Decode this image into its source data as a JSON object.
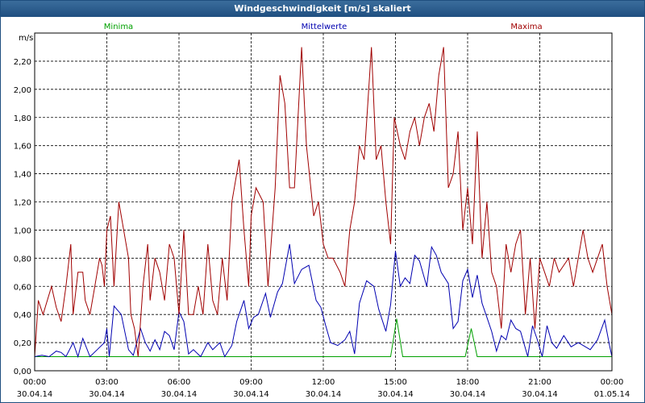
{
  "window": {
    "title": "Windgeschwindigkeit [m/s] skaliert"
  },
  "chart_data": {
    "type": "line",
    "title": "Windgeschwindigkeit [m/s] skaliert",
    "ylabel": "m/s",
    "ylim": [
      0,
      2.4
    ],
    "grid": true,
    "legend_placement": "top",
    "yticks": [
      "0,00",
      "0,20",
      "0,40",
      "0,60",
      "0,80",
      "1,00",
      "1,20",
      "1,40",
      "1,60",
      "1,80",
      "2,00",
      "2,20"
    ],
    "ytick_values": [
      0,
      0.2,
      0.4,
      0.6,
      0.8,
      1.0,
      1.2,
      1.4,
      1.6,
      1.8,
      2.0,
      2.2
    ],
    "xticks": [
      {
        "time": "00:00",
        "date": "30.04.14"
      },
      {
        "time": "03:00",
        "date": "30.04.14"
      },
      {
        "time": "06:00",
        "date": "30.04.14"
      },
      {
        "time": "09:00",
        "date": "30.04.14"
      },
      {
        "time": "12:00",
        "date": "30.04.14"
      },
      {
        "time": "15:00",
        "date": "30.04.14"
      },
      {
        "time": "18:00",
        "date": "30.04.14"
      },
      {
        "time": "21:00",
        "date": "30.04.14"
      },
      {
        "time": "00:00",
        "date": "01.05.14"
      }
    ],
    "xlim": [
      0,
      24
    ],
    "series": [
      {
        "name": "Minima",
        "color": "#00a000",
        "points": [
          [
            0,
            0.1
          ],
          [
            14.8,
            0.1
          ],
          [
            15.05,
            0.37
          ],
          [
            15.3,
            0.1
          ],
          [
            17.9,
            0.1
          ],
          [
            18.15,
            0.3
          ],
          [
            18.4,
            0.1
          ],
          [
            24,
            0.1
          ]
        ]
      },
      {
        "name": "Mittelwerte",
        "color": "#0000b0",
        "points": [
          [
            0,
            0.1
          ],
          [
            0.3,
            0.11
          ],
          [
            0.6,
            0.1
          ],
          [
            0.9,
            0.14
          ],
          [
            1.1,
            0.13
          ],
          [
            1.3,
            0.1
          ],
          [
            1.6,
            0.2
          ],
          [
            1.8,
            0.1
          ],
          [
            2.0,
            0.23
          ],
          [
            2.3,
            0.1
          ],
          [
            2.6,
            0.15
          ],
          [
            2.9,
            0.2
          ],
          [
            3.0,
            0.3
          ],
          [
            3.1,
            0.1
          ],
          [
            3.3,
            0.46
          ],
          [
            3.6,
            0.4
          ],
          [
            3.9,
            0.15
          ],
          [
            4.1,
            0.11
          ],
          [
            4.4,
            0.3
          ],
          [
            4.6,
            0.2
          ],
          [
            4.8,
            0.14
          ],
          [
            5.0,
            0.22
          ],
          [
            5.2,
            0.15
          ],
          [
            5.4,
            0.28
          ],
          [
            5.6,
            0.25
          ],
          [
            5.8,
            0.15
          ],
          [
            6.0,
            0.42
          ],
          [
            6.2,
            0.35
          ],
          [
            6.4,
            0.12
          ],
          [
            6.6,
            0.15
          ],
          [
            6.9,
            0.1
          ],
          [
            7.2,
            0.2
          ],
          [
            7.4,
            0.15
          ],
          [
            7.7,
            0.2
          ],
          [
            7.9,
            0.1
          ],
          [
            8.2,
            0.18
          ],
          [
            8.4,
            0.35
          ],
          [
            8.7,
            0.5
          ],
          [
            8.9,
            0.3
          ],
          [
            9.1,
            0.38
          ],
          [
            9.3,
            0.4
          ],
          [
            9.6,
            0.55
          ],
          [
            9.8,
            0.38
          ],
          [
            10.1,
            0.56
          ],
          [
            10.3,
            0.62
          ],
          [
            10.6,
            0.9
          ],
          [
            10.8,
            0.62
          ],
          [
            11.1,
            0.72
          ],
          [
            11.4,
            0.75
          ],
          [
            11.7,
            0.5
          ],
          [
            11.9,
            0.45
          ],
          [
            12.1,
            0.32
          ],
          [
            12.3,
            0.2
          ],
          [
            12.6,
            0.18
          ],
          [
            12.9,
            0.22
          ],
          [
            13.1,
            0.28
          ],
          [
            13.3,
            0.12
          ],
          [
            13.5,
            0.48
          ],
          [
            13.8,
            0.64
          ],
          [
            14.1,
            0.6
          ],
          [
            14.3,
            0.44
          ],
          [
            14.6,
            0.28
          ],
          [
            14.8,
            0.47
          ],
          [
            15.0,
            0.85
          ],
          [
            15.2,
            0.6
          ],
          [
            15.4,
            0.66
          ],
          [
            15.6,
            0.62
          ],
          [
            15.8,
            0.82
          ],
          [
            16.0,
            0.78
          ],
          [
            16.3,
            0.6
          ],
          [
            16.5,
            0.88
          ],
          [
            16.7,
            0.82
          ],
          [
            16.9,
            0.7
          ],
          [
            17.2,
            0.62
          ],
          [
            17.4,
            0.3
          ],
          [
            17.6,
            0.35
          ],
          [
            17.8,
            0.64
          ],
          [
            18.0,
            0.72
          ],
          [
            18.2,
            0.52
          ],
          [
            18.4,
            0.68
          ],
          [
            18.6,
            0.48
          ],
          [
            18.8,
            0.38
          ],
          [
            19.0,
            0.28
          ],
          [
            19.2,
            0.14
          ],
          [
            19.4,
            0.25
          ],
          [
            19.6,
            0.22
          ],
          [
            19.8,
            0.36
          ],
          [
            20.0,
            0.3
          ],
          [
            20.2,
            0.28
          ],
          [
            20.5,
            0.1
          ],
          [
            20.7,
            0.32
          ],
          [
            20.9,
            0.22
          ],
          [
            21.1,
            0.1
          ],
          [
            21.3,
            0.32
          ],
          [
            21.5,
            0.2
          ],
          [
            21.7,
            0.16
          ],
          [
            22.0,
            0.25
          ],
          [
            22.3,
            0.17
          ],
          [
            22.6,
            0.2
          ],
          [
            22.8,
            0.18
          ],
          [
            23.1,
            0.15
          ],
          [
            23.4,
            0.22
          ],
          [
            23.7,
            0.36
          ],
          [
            23.9,
            0.18
          ],
          [
            24,
            0.1
          ]
        ]
      },
      {
        "name": "Maxima",
        "color": "#a00000",
        "points": [
          [
            0,
            0.1
          ],
          [
            0.15,
            0.5
          ],
          [
            0.35,
            0.4
          ],
          [
            0.7,
            0.6
          ],
          [
            0.9,
            0.45
          ],
          [
            1.1,
            0.35
          ],
          [
            1.3,
            0.6
          ],
          [
            1.5,
            0.9
          ],
          [
            1.6,
            0.4
          ],
          [
            1.8,
            0.7
          ],
          [
            2.0,
            0.7
          ],
          [
            2.1,
            0.5
          ],
          [
            2.3,
            0.4
          ],
          [
            2.5,
            0.6
          ],
          [
            2.7,
            0.8
          ],
          [
            2.8,
            0.75
          ],
          [
            2.9,
            0.6
          ],
          [
            3.0,
            1.0
          ],
          [
            3.15,
            1.1
          ],
          [
            3.3,
            0.6
          ],
          [
            3.5,
            1.2
          ],
          [
            3.7,
            1.0
          ],
          [
            3.9,
            0.8
          ],
          [
            4.0,
            0.4
          ],
          [
            4.15,
            0.3
          ],
          [
            4.3,
            0.1
          ],
          [
            4.5,
            0.6
          ],
          [
            4.7,
            0.9
          ],
          [
            4.8,
            0.5
          ],
          [
            5.0,
            0.8
          ],
          [
            5.2,
            0.7
          ],
          [
            5.4,
            0.5
          ],
          [
            5.6,
            0.9
          ],
          [
            5.8,
            0.8
          ],
          [
            6.0,
            0.4
          ],
          [
            6.2,
            1.0
          ],
          [
            6.4,
            0.4
          ],
          [
            6.6,
            0.4
          ],
          [
            6.8,
            0.6
          ],
          [
            7.0,
            0.4
          ],
          [
            7.2,
            0.9
          ],
          [
            7.4,
            0.5
          ],
          [
            7.6,
            0.4
          ],
          [
            7.8,
            0.8
          ],
          [
            8.0,
            0.5
          ],
          [
            8.2,
            1.2
          ],
          [
            8.5,
            1.5
          ],
          [
            8.7,
            1.0
          ],
          [
            8.9,
            0.6
          ],
          [
            9.0,
            1.1
          ],
          [
            9.2,
            1.3
          ],
          [
            9.5,
            1.2
          ],
          [
            9.7,
            0.6
          ],
          [
            10.0,
            1.3
          ],
          [
            10.2,
            2.1
          ],
          [
            10.4,
            1.9
          ],
          [
            10.6,
            1.3
          ],
          [
            10.8,
            1.3
          ],
          [
            11.1,
            2.3
          ],
          [
            11.3,
            1.6
          ],
          [
            11.6,
            1.1
          ],
          [
            11.8,
            1.2
          ],
          [
            12.0,
            0.9
          ],
          [
            12.2,
            0.8
          ],
          [
            12.4,
            0.8
          ],
          [
            12.7,
            0.7
          ],
          [
            12.9,
            0.6
          ],
          [
            13.1,
            1.0
          ],
          [
            13.3,
            1.2
          ],
          [
            13.5,
            1.6
          ],
          [
            13.7,
            1.5
          ],
          [
            14.0,
            2.3
          ],
          [
            14.2,
            1.5
          ],
          [
            14.4,
            1.6
          ],
          [
            14.6,
            1.2
          ],
          [
            14.8,
            0.9
          ],
          [
            14.95,
            1.8
          ],
          [
            15.2,
            1.6
          ],
          [
            15.4,
            1.5
          ],
          [
            15.6,
            1.7
          ],
          [
            15.8,
            1.8
          ],
          [
            16.0,
            1.6
          ],
          [
            16.2,
            1.8
          ],
          [
            16.4,
            1.9
          ],
          [
            16.6,
            1.7
          ],
          [
            16.8,
            2.1
          ],
          [
            17.0,
            2.3
          ],
          [
            17.2,
            1.3
          ],
          [
            17.4,
            1.4
          ],
          [
            17.6,
            1.7
          ],
          [
            17.8,
            1.0
          ],
          [
            18.0,
            1.3
          ],
          [
            18.2,
            0.9
          ],
          [
            18.4,
            1.7
          ],
          [
            18.6,
            0.8
          ],
          [
            18.8,
            1.2
          ],
          [
            19.0,
            0.7
          ],
          [
            19.2,
            0.6
          ],
          [
            19.4,
            0.3
          ],
          [
            19.6,
            0.9
          ],
          [
            19.8,
            0.7
          ],
          [
            20.0,
            0.9
          ],
          [
            20.2,
            1.0
          ],
          [
            20.4,
            0.4
          ],
          [
            20.6,
            0.8
          ],
          [
            20.8,
            0.3
          ],
          [
            21.0,
            0.8
          ],
          [
            21.2,
            0.7
          ],
          [
            21.4,
            0.6
          ],
          [
            21.6,
            0.8
          ],
          [
            21.8,
            0.7
          ],
          [
            22.0,
            0.75
          ],
          [
            22.2,
            0.8
          ],
          [
            22.4,
            0.6
          ],
          [
            22.6,
            0.8
          ],
          [
            22.8,
            1.0
          ],
          [
            23.0,
            0.8
          ],
          [
            23.2,
            0.7
          ],
          [
            23.4,
            0.8
          ],
          [
            23.6,
            0.9
          ],
          [
            23.8,
            0.6
          ],
          [
            24.0,
            0.4
          ]
        ]
      }
    ]
  }
}
